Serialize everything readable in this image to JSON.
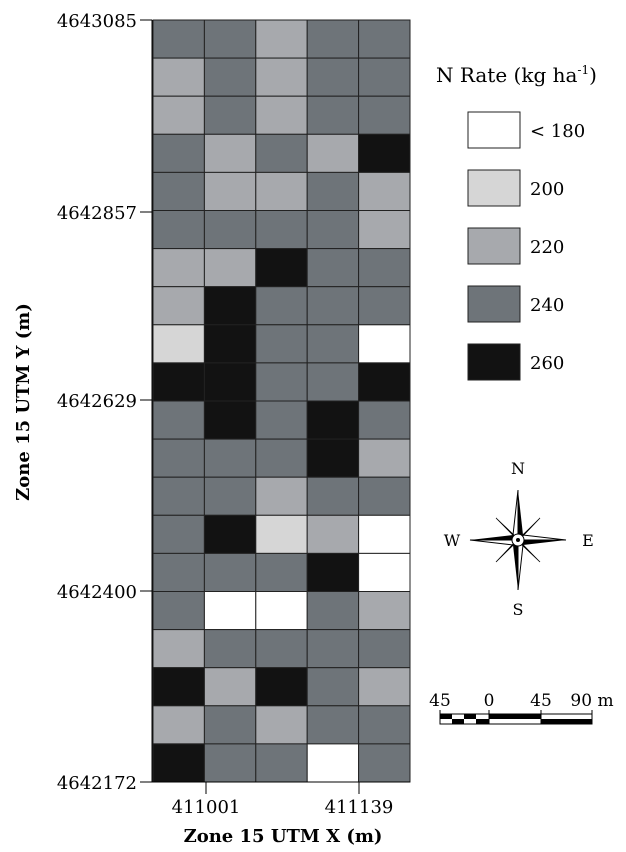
{
  "map": {
    "y_axis": {
      "title": "Zone 15 UTM Y (m)",
      "ticks": [
        "4643085",
        "4642857",
        "4642629",
        "4642400",
        "4642172"
      ]
    },
    "x_axis": {
      "title": "Zone 15 UTM X (m)",
      "ticks": [
        "411001",
        "411139"
      ]
    },
    "grid": {
      "columns": 5,
      "rows": 20,
      "rates_kg_ha": [
        [
          240,
          240,
          220,
          240,
          240
        ],
        [
          220,
          240,
          220,
          240,
          240
        ],
        [
          220,
          240,
          220,
          240,
          240
        ],
        [
          240,
          220,
          240,
          220,
          260
        ],
        [
          240,
          220,
          220,
          240,
          220
        ],
        [
          240,
          240,
          240,
          240,
          220
        ],
        [
          220,
          220,
          260,
          240,
          240
        ],
        [
          220,
          260,
          240,
          240,
          240
        ],
        [
          200,
          260,
          240,
          240,
          180
        ],
        [
          260,
          260,
          240,
          240,
          260
        ],
        [
          240,
          260,
          240,
          260,
          240
        ],
        [
          240,
          240,
          240,
          260,
          220
        ],
        [
          240,
          240,
          220,
          240,
          240
        ],
        [
          240,
          260,
          200,
          220,
          180
        ],
        [
          240,
          240,
          240,
          260,
          180
        ],
        [
          240,
          180,
          180,
          240,
          220
        ],
        [
          220,
          240,
          240,
          240,
          240
        ],
        [
          260,
          220,
          260,
          240,
          220
        ],
        [
          220,
          240,
          220,
          240,
          240
        ],
        [
          260,
          240,
          240,
          180,
          240
        ]
      ]
    },
    "legend": {
      "title": "N Rate (kg ha",
      "title_sup": "-1",
      "title_end": ")",
      "items": [
        {
          "label": "< 180",
          "rate": 180,
          "color": "#ffffff"
        },
        {
          "label": "200",
          "rate": 200,
          "color": "#d6d6d6"
        },
        {
          "label": "220",
          "rate": 220,
          "color": "#a7a9ad"
        },
        {
          "label": "240",
          "rate": 240,
          "color": "#6e7479"
        },
        {
          "label": "260",
          "rate": 260,
          "color": "#121212"
        }
      ]
    },
    "compass": {
      "n": "N",
      "s": "S",
      "e": "E",
      "w": "W"
    },
    "scale_bar": {
      "labels": [
        "45",
        "0",
        "45",
        "90 m"
      ]
    }
  }
}
